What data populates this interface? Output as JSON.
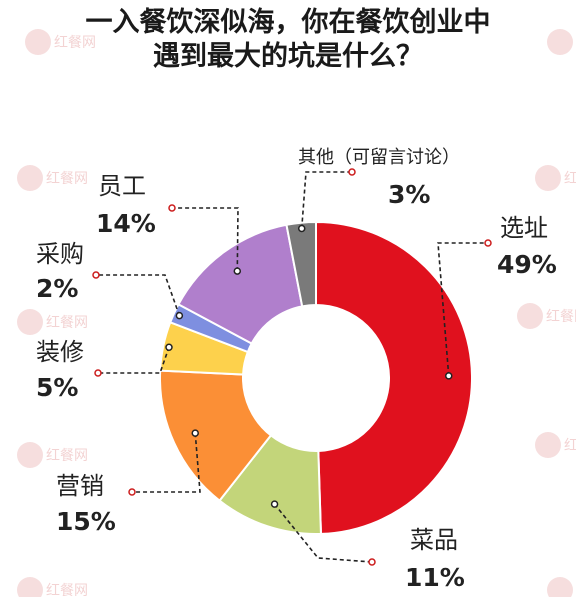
{
  "title": {
    "line1": "一入餐饮深似海，你在餐饮创业中",
    "line2": "遇到最大的坑是什么？"
  },
  "watermark": "红餐网",
  "chart_data": {
    "type": "pie",
    "donut": true,
    "title": "一入餐饮深似海，你在餐饮创业中遇到最大的坑是什么？",
    "slices": [
      {
        "label": "选址",
        "value": 49,
        "value_text": "49%",
        "color": "#e0111e"
      },
      {
        "label": "菜品",
        "value": 11,
        "value_text": "11%",
        "color": "#c3d57a"
      },
      {
        "label": "营销",
        "value": 15,
        "value_text": "15%",
        "color": "#fb8f36"
      },
      {
        "label": "装修",
        "value": 5,
        "value_text": "5%",
        "color": "#fdd14c"
      },
      {
        "label": "采购",
        "value": 2,
        "value_text": "2%",
        "color": "#7e8fe0"
      },
      {
        "label": "员工",
        "value": 14,
        "value_text": "14%",
        "color": "#b07fcc"
      },
      {
        "label": "其他（可留言讨论）",
        "value": 3,
        "value_text": "3%",
        "color": "#7a7a7a"
      }
    ]
  }
}
